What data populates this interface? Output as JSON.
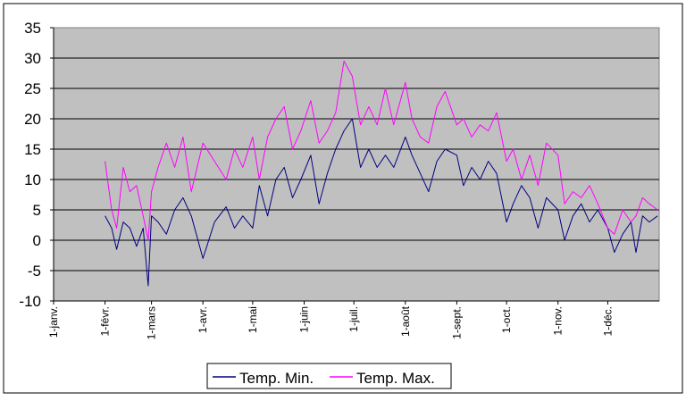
{
  "chart_data": {
    "type": "line",
    "title": "",
    "xlabel": "",
    "ylabel": "",
    "ylim": [
      -10,
      35
    ],
    "yticks": [
      35,
      30,
      25,
      20,
      15,
      10,
      5,
      0,
      -5,
      -10
    ],
    "x_ticks": [
      "1-janv.",
      "1-févr.",
      "1-mars",
      "1-avr.",
      "1-mai",
      "1-juin",
      "1-juil.",
      "1-août",
      "1-sept.",
      "1-oct.",
      "1-nov.",
      "1-déc."
    ],
    "grid": "horizontal",
    "plot_background": "#C0C0C0",
    "legend_position": "bottom",
    "series": [
      {
        "name": "Temp. Min.",
        "color": "#000080",
        "points": [
          [
            "1-févr.",
            4
          ],
          [
            "5-févr.",
            2
          ],
          [
            "8-févr.",
            -1.5
          ],
          [
            "12-févr.",
            3
          ],
          [
            "16-févr.",
            2
          ],
          [
            "20-févr.",
            -1
          ],
          [
            "24-févr.",
            2
          ],
          [
            "27-févr.",
            -7.5
          ],
          [
            "1-mars",
            4
          ],
          [
            "5-mars",
            3
          ],
          [
            "10-mars",
            1
          ],
          [
            "15-mars",
            5
          ],
          [
            "20-mars",
            7
          ],
          [
            "25-mars",
            4
          ],
          [
            "1-avr.",
            -3
          ],
          [
            "8-avr.",
            3
          ],
          [
            "15-avr.",
            5.5
          ],
          [
            "20-avr.",
            2
          ],
          [
            "25-avr.",
            4
          ],
          [
            "1-mai",
            2
          ],
          [
            "5-mai",
            9
          ],
          [
            "10-mai",
            4
          ],
          [
            "15-mai",
            10
          ],
          [
            "20-mai",
            12
          ],
          [
            "25-mai",
            7
          ],
          [
            "30-mai",
            10
          ],
          [
            "5-juin",
            14
          ],
          [
            "10-juin",
            6
          ],
          [
            "15-juin",
            11
          ],
          [
            "20-juin",
            15
          ],
          [
            "25-juin",
            18
          ],
          [
            "30-juin",
            20
          ],
          [
            "5-juil.",
            12
          ],
          [
            "10-juil.",
            15
          ],
          [
            "15-juil.",
            12
          ],
          [
            "20-juil.",
            14
          ],
          [
            "25-juil.",
            12
          ],
          [
            "1-août",
            17
          ],
          [
            "5-août",
            14
          ],
          [
            "10-août",
            11
          ],
          [
            "15-août",
            8
          ],
          [
            "20-août",
            13
          ],
          [
            "25-août",
            15
          ],
          [
            "1-sept.",
            14
          ],
          [
            "5-sept.",
            9
          ],
          [
            "10-sept.",
            12
          ],
          [
            "15-sept.",
            10
          ],
          [
            "20-sept.",
            13
          ],
          [
            "25-sept.",
            11
          ],
          [
            "1-oct.",
            3
          ],
          [
            "5-oct.",
            6
          ],
          [
            "10-oct.",
            9
          ],
          [
            "15-oct.",
            7
          ],
          [
            "20-oct.",
            2
          ],
          [
            "25-oct.",
            7
          ],
          [
            "1-nov.",
            5
          ],
          [
            "5-nov.",
            0
          ],
          [
            "10-nov.",
            4
          ],
          [
            "15-nov.",
            6
          ],
          [
            "20-nov.",
            3
          ],
          [
            "25-nov.",
            5
          ],
          [
            "1-déc.",
            2
          ],
          [
            "5-déc.",
            -2
          ],
          [
            "10-déc.",
            1
          ],
          [
            "15-déc.",
            3
          ],
          [
            "18-déc.",
            -2
          ],
          [
            "22-déc.",
            4
          ],
          [
            "26-déc.",
            3
          ],
          [
            "31-déc.",
            4
          ]
        ]
      },
      {
        "name": "Temp. Max.",
        "color": "#FF00FF",
        "points": [
          [
            "1-févr.",
            13
          ],
          [
            "5-févr.",
            5
          ],
          [
            "8-févr.",
            2
          ],
          [
            "12-févr.",
            12
          ],
          [
            "16-févr.",
            8
          ],
          [
            "20-févr.",
            9
          ],
          [
            "24-févr.",
            4
          ],
          [
            "27-févr.",
            0
          ],
          [
            "1-mars",
            8
          ],
          [
            "5-mars",
            12
          ],
          [
            "10-mars",
            16
          ],
          [
            "15-mars",
            12
          ],
          [
            "20-mars",
            17
          ],
          [
            "25-mars",
            8
          ],
          [
            "1-avr.",
            16
          ],
          [
            "8-avr.",
            13
          ],
          [
            "15-avr.",
            10
          ],
          [
            "20-avr.",
            15
          ],
          [
            "25-avr.",
            12
          ],
          [
            "1-mai",
            17
          ],
          [
            "5-mai",
            10
          ],
          [
            "10-mai",
            17
          ],
          [
            "15-mai",
            20
          ],
          [
            "20-mai",
            22
          ],
          [
            "25-mai",
            15
          ],
          [
            "30-mai",
            18
          ],
          [
            "5-juin",
            23
          ],
          [
            "10-juin",
            16
          ],
          [
            "15-juin",
            18
          ],
          [
            "20-juin",
            21
          ],
          [
            "25-juin",
            29.5
          ],
          [
            "30-juin",
            27
          ],
          [
            "5-juil.",
            19
          ],
          [
            "10-juil.",
            22
          ],
          [
            "15-juil.",
            19
          ],
          [
            "20-juil.",
            25
          ],
          [
            "25-juil.",
            19
          ],
          [
            "1-août",
            26
          ],
          [
            "5-août",
            20
          ],
          [
            "10-août",
            17
          ],
          [
            "15-août",
            16
          ],
          [
            "20-août",
            22
          ],
          [
            "25-août",
            24.5
          ],
          [
            "1-sept.",
            19
          ],
          [
            "5-sept.",
            20
          ],
          [
            "10-sept.",
            17
          ],
          [
            "15-sept.",
            19
          ],
          [
            "20-sept.",
            18
          ],
          [
            "25-sept.",
            21
          ],
          [
            "1-oct.",
            13
          ],
          [
            "5-oct.",
            15
          ],
          [
            "10-oct.",
            10
          ],
          [
            "15-oct.",
            14
          ],
          [
            "20-oct.",
            9
          ],
          [
            "25-oct.",
            16
          ],
          [
            "1-nov.",
            14
          ],
          [
            "5-nov.",
            6
          ],
          [
            "10-nov.",
            8
          ],
          [
            "15-nov.",
            7
          ],
          [
            "20-nov.",
            9
          ],
          [
            "25-nov.",
            6
          ],
          [
            "1-déc.",
            2
          ],
          [
            "5-déc.",
            1
          ],
          [
            "10-déc.",
            5
          ],
          [
            "15-déc.",
            3
          ],
          [
            "18-déc.",
            4
          ],
          [
            "22-déc.",
            7
          ],
          [
            "26-déc.",
            6
          ],
          [
            "31-déc.",
            5
          ]
        ]
      }
    ]
  }
}
